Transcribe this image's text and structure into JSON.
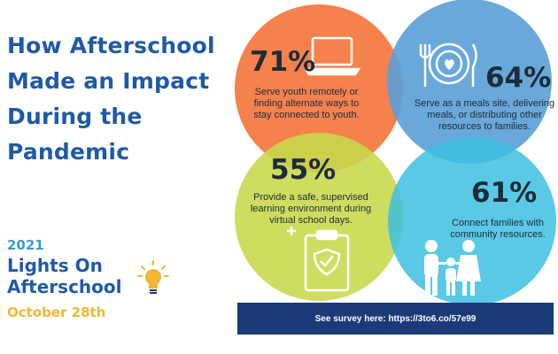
{
  "title": "How Afterschool\nMade an Impact\nDuring the\nPandemic",
  "event": {
    "year": "2021",
    "name": "Lights On\nAfterschool",
    "date": "October 28th"
  },
  "stats": [
    {
      "percent": "71%",
      "text": "Serve youth remotely or finding alternate ways to stay connected to youth.",
      "color": "#f47a43",
      "icon": "laptop-icon"
    },
    {
      "percent": "64%",
      "text": "Serve as a meals site, delivering meals, or distributing other resources to families.",
      "color": "#5a9fd6",
      "icon": "meal-plate-icon"
    },
    {
      "percent": "55%",
      "text": "Provide a safe, supervised learning environment during virtual school days.",
      "color": "#c7d84a",
      "icon": "clipboard-shield-icon"
    },
    {
      "percent": "61%",
      "text": "Connect families with community resources.",
      "color": "#3dbfe0",
      "icon": "family-icon"
    }
  ],
  "banner": "See survey here: https://3to6.co/57e99",
  "colors": {
    "title": "#1f5aa6",
    "year": "#3a9bd5",
    "date": "#f2b632",
    "banner": "#1b3a78"
  }
}
